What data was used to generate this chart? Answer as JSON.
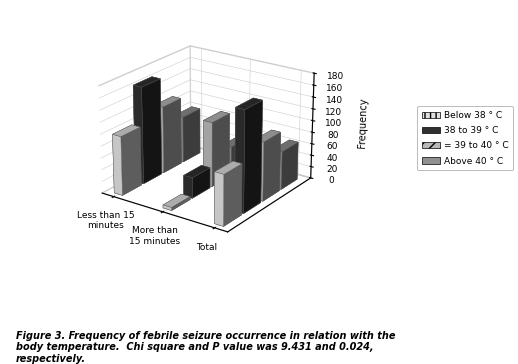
{
  "categories": [
    "Less than 15\nminutes",
    "More than\n15 minutes",
    "Total"
  ],
  "series": [
    {
      "label": "Below 38 ° C",
      "values": [
        100,
        5,
        85
      ],
      "color": "#e0e0e0",
      "hatch": "|||"
    },
    {
      "label": "38 to 39 ° C",
      "values": [
        165,
        35,
        170
      ],
      "color": "#303030",
      "hatch": ""
    },
    {
      "label": "= 39 to 40 ° C",
      "values": [
        115,
        110,
        100
      ],
      "color": "#b8b8b8",
      "hatch": "///"
    },
    {
      "label": "Above 40 ° C",
      "values": [
        80,
        50,
        65
      ],
      "color": "#909090",
      "hatch": ""
    }
  ],
  "ylabel": "Frequency",
  "ylim": [
    0,
    180
  ],
  "yticks": [
    0,
    20,
    40,
    60,
    80,
    100,
    120,
    140,
    160,
    180
  ],
  "group_positions": [
    0,
    2.2,
    4.4
  ],
  "bar_width": 0.42,
  "bar_depth": 0.38,
  "bar_gap": 0.05,
  "elev": 22,
  "azim": -55,
  "background_color": "#ffffff",
  "caption": "Figure 3. Frequency of febrile seizure occurrence in relation with the\nbody temperature.  Chi square and P value was 9.431 and 0.024,\nrespectively."
}
